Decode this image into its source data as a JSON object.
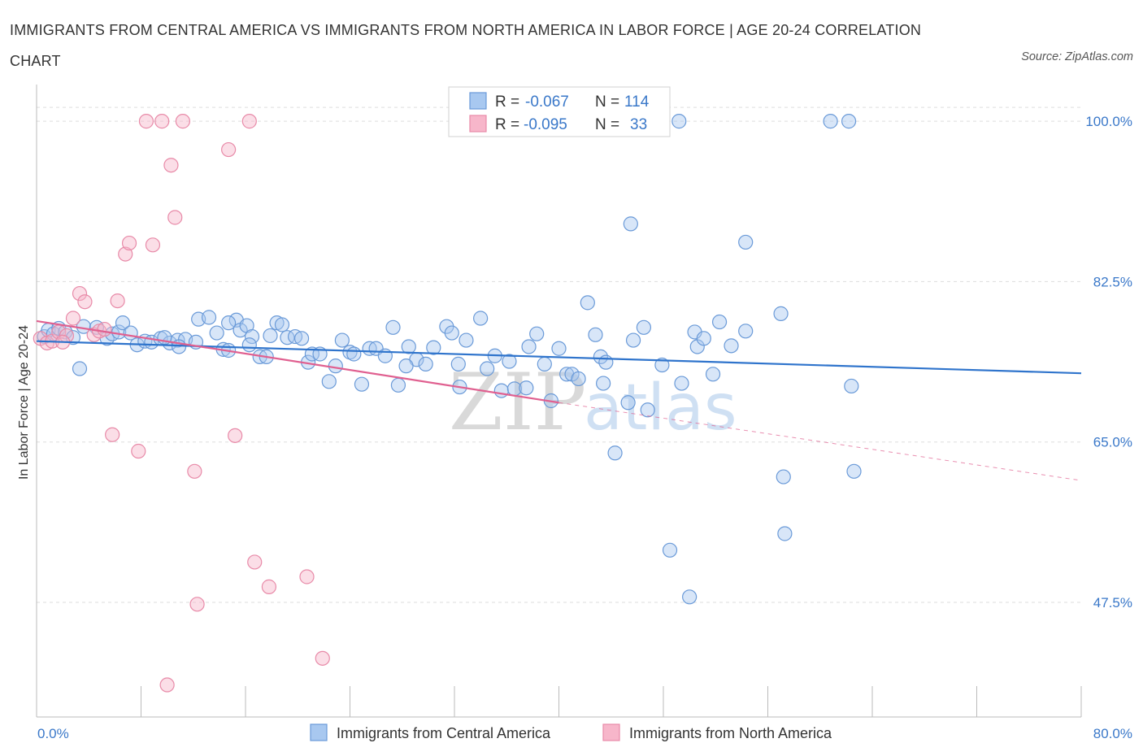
{
  "header": {
    "title": "IMMIGRANTS FROM CENTRAL AMERICA VS IMMIGRANTS FROM NORTH AMERICA IN LABOR FORCE | AGE 20-24 CORRELATION CHART",
    "source": "Source: ZipAtlas.com"
  },
  "watermark": {
    "zip": "ZIP",
    "atlas": "atlas"
  },
  "colors": {
    "blue_fill": "#a8c8f0",
    "blue_stroke": "#6a9ad8",
    "blue_line": "#2f74cc",
    "pink_fill": "#f7b6ca",
    "pink_stroke": "#e88aa8",
    "pink_line": "#e06090",
    "grid": "#dddddd",
    "label": "#3a78c9"
  },
  "chart_data": {
    "type": "scatter",
    "xlabel": "",
    "ylabel": "In Labor Force | Age 20-24",
    "xlim": [
      0,
      80
    ],
    "ylim": [
      35,
      104
    ],
    "x_tick_labels": [
      {
        "value": 0,
        "label": "0.0%"
      },
      {
        "value": 80,
        "label": "80.0%"
      }
    ],
    "y_tick_labels": [
      {
        "value": 100,
        "label": "100.0%"
      },
      {
        "value": 82.5,
        "label": "82.5%"
      },
      {
        "value": 65,
        "label": "65.0%"
      },
      {
        "value": 47.5,
        "label": "47.5%"
      }
    ],
    "grid": true,
    "legend_position": "top-center",
    "stats": [
      {
        "r_label": "R =",
        "r": "-0.067",
        "n_label": "N =",
        "n": "114"
      },
      {
        "r_label": "R =",
        "r": "-0.095",
        "n_label": "N =",
        "n": "33"
      }
    ],
    "series": [
      {
        "name": "Immigrants from Central America",
        "color": "#a8c8f0",
        "trend": {
          "x": [
            0,
            80
          ],
          "y": [
            76.0,
            72.5
          ],
          "style": "solid"
        },
        "points": [
          [
            0.6,
            76.5
          ],
          [
            0.9,
            77.2
          ],
          [
            1.3,
            76.8
          ],
          [
            1.7,
            77.4
          ],
          [
            2.2,
            77.0
          ],
          [
            2.8,
            76.4
          ],
          [
            3.3,
            73.0
          ],
          [
            3.6,
            77.6
          ],
          [
            4.6,
            77.5
          ],
          [
            5.4,
            76.3
          ],
          [
            5.8,
            76.8
          ],
          [
            6.3,
            77.0
          ],
          [
            6.6,
            78.0
          ],
          [
            7.2,
            76.9
          ],
          [
            7.7,
            75.6
          ],
          [
            8.3,
            76.0
          ],
          [
            8.8,
            75.9
          ],
          [
            9.5,
            76.3
          ],
          [
            10.2,
            75.8
          ],
          [
            10.8,
            76.1
          ],
          [
            11.4,
            76.2
          ],
          [
            12.2,
            75.9
          ],
          [
            12.4,
            78.4
          ],
          [
            13.2,
            78.6
          ],
          [
            13.8,
            76.9
          ],
          [
            14.3,
            75.1
          ],
          [
            14.7,
            75.0
          ],
          [
            15.3,
            78.3
          ],
          [
            15.6,
            77.2
          ],
          [
            16.1,
            77.7
          ],
          [
            16.5,
            76.5
          ],
          [
            17.1,
            74.3
          ],
          [
            17.6,
            74.3
          ],
          [
            17.9,
            76.6
          ],
          [
            18.4,
            78.0
          ],
          [
            18.8,
            77.8
          ],
          [
            19.2,
            76.4
          ],
          [
            19.8,
            76.5
          ],
          [
            20.3,
            76.3
          ],
          [
            20.8,
            73.7
          ],
          [
            21.1,
            74.6
          ],
          [
            21.7,
            74.6
          ],
          [
            22.4,
            71.6
          ],
          [
            22.9,
            73.3
          ],
          [
            23.4,
            76.1
          ],
          [
            24.0,
            74.8
          ],
          [
            24.3,
            74.6
          ],
          [
            24.9,
            71.3
          ],
          [
            25.5,
            75.2
          ],
          [
            26.0,
            75.2
          ],
          [
            26.7,
            74.4
          ],
          [
            27.3,
            77.5
          ],
          [
            27.7,
            71.2
          ],
          [
            28.5,
            75.4
          ],
          [
            29.1,
            74.0
          ],
          [
            29.8,
            73.5
          ],
          [
            30.4,
            75.3
          ],
          [
            31.4,
            77.6
          ],
          [
            31.8,
            76.9
          ],
          [
            32.3,
            73.5
          ],
          [
            32.9,
            76.1
          ],
          [
            34.0,
            78.5
          ],
          [
            34.5,
            73.0
          ],
          [
            35.1,
            74.4
          ],
          [
            35.6,
            70.6
          ],
          [
            36.2,
            73.8
          ],
          [
            36.6,
            70.8
          ],
          [
            37.5,
            70.9
          ],
          [
            37.7,
            75.4
          ],
          [
            38.3,
            76.8
          ],
          [
            38.9,
            73.5
          ],
          [
            39.4,
            69.5
          ],
          [
            40.0,
            75.2
          ],
          [
            40.6,
            72.4
          ],
          [
            41.0,
            72.4
          ],
          [
            41.5,
            71.9
          ],
          [
            42.2,
            80.2
          ],
          [
            42.8,
            76.7
          ],
          [
            43.2,
            74.3
          ],
          [
            43.4,
            71.4
          ],
          [
            43.6,
            73.7
          ],
          [
            44.3,
            63.8
          ],
          [
            45.3,
            69.3
          ],
          [
            45.5,
            88.8
          ],
          [
            45.7,
            76.1
          ],
          [
            46.5,
            77.5
          ],
          [
            46.8,
            68.5
          ],
          [
            47.9,
            73.4
          ],
          [
            48.5,
            53.2
          ],
          [
            49.4,
            71.4
          ],
          [
            50.0,
            48.1
          ],
          [
            50.4,
            77.0
          ],
          [
            50.6,
            75.4
          ],
          [
            51.1,
            76.3
          ],
          [
            51.8,
            72.4
          ],
          [
            52.3,
            78.1
          ],
          [
            53.2,
            75.5
          ],
          [
            54.3,
            86.8
          ],
          [
            54.3,
            77.1
          ],
          [
            57.0,
            79.0
          ],
          [
            57.2,
            61.2
          ],
          [
            57.3,
            55.0
          ],
          [
            60.8,
            100.0
          ],
          [
            62.2,
            100.0
          ],
          [
            62.4,
            71.1
          ],
          [
            62.6,
            61.8
          ],
          [
            44.9,
            100.0
          ],
          [
            49.2,
            100.0
          ],
          [
            32.4,
            71.0
          ],
          [
            28.3,
            73.3
          ],
          [
            10.9,
            75.4
          ],
          [
            14.7,
            78.0
          ],
          [
            16.3,
            75.6
          ],
          [
            9.8,
            76.4
          ]
        ]
      },
      {
        "name": "Immigrants from North America",
        "color": "#f7b6ca",
        "trend": {
          "x": [
            0,
            40,
            80
          ],
          "y": [
            78.2,
            69.3,
            60.8
          ],
          "solid_until": 40
        },
        "points": [
          [
            0.3,
            76.3
          ],
          [
            0.8,
            75.8
          ],
          [
            1.2,
            76.0
          ],
          [
            1.7,
            77.0
          ],
          [
            2.3,
            76.6
          ],
          [
            2.8,
            78.5
          ],
          [
            3.3,
            81.2
          ],
          [
            3.7,
            80.3
          ],
          [
            4.4,
            76.7
          ],
          [
            4.8,
            77.1
          ],
          [
            5.2,
            77.3
          ],
          [
            5.8,
            65.8
          ],
          [
            6.2,
            80.4
          ],
          [
            6.8,
            85.5
          ],
          [
            7.1,
            86.7
          ],
          [
            7.8,
            64.0
          ],
          [
            8.4,
            100.0
          ],
          [
            8.9,
            86.5
          ],
          [
            9.6,
            100.0
          ],
          [
            10.0,
            38.5
          ],
          [
            10.3,
            95.2
          ],
          [
            10.6,
            89.5
          ],
          [
            11.2,
            100.0
          ],
          [
            12.1,
            61.8
          ],
          [
            12.3,
            47.3
          ],
          [
            14.7,
            96.9
          ],
          [
            15.2,
            65.7
          ],
          [
            16.3,
            100.0
          ],
          [
            16.7,
            51.9
          ],
          [
            17.8,
            49.2
          ],
          [
            20.7,
            50.3
          ],
          [
            21.9,
            41.4
          ],
          [
            2.0,
            75.9
          ]
        ]
      }
    ]
  }
}
